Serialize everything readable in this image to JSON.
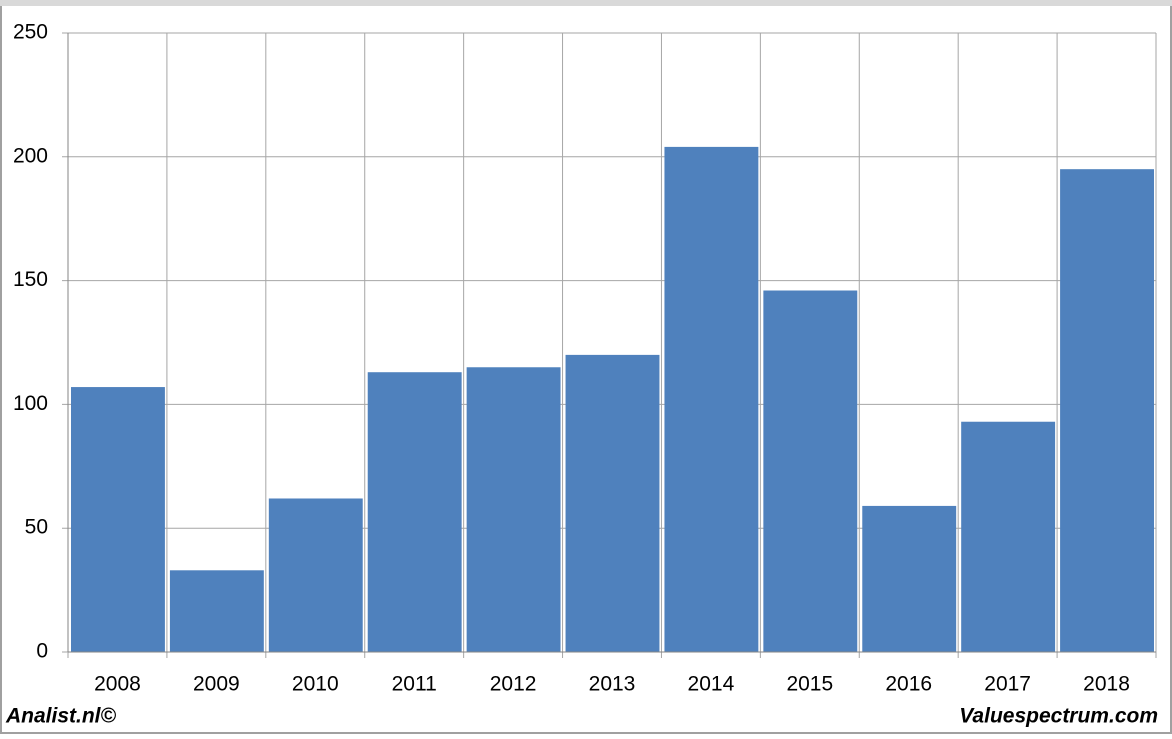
{
  "chart_data": {
    "type": "bar",
    "categories": [
      "2008",
      "2009",
      "2010",
      "2011",
      "2012",
      "2013",
      "2014",
      "2015",
      "2016",
      "2017",
      "2018"
    ],
    "values": [
      107,
      33,
      62,
      113,
      115,
      120,
      204,
      146,
      59,
      93,
      195
    ],
    "color": "#4f81bd",
    "ylim": [
      0,
      250
    ],
    "yticks": [
      0,
      50,
      100,
      150,
      200,
      250
    ],
    "grid": true
  },
  "footer": {
    "left": "Analist.nl©",
    "right": "Valuespectrum.com"
  }
}
